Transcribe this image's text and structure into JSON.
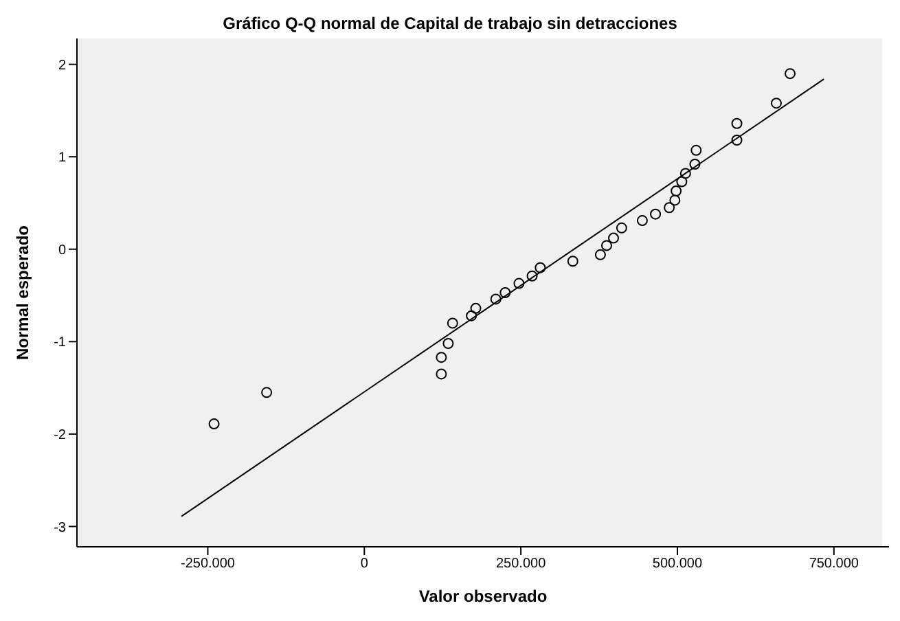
{
  "chart_data": {
    "type": "scatter",
    "title": "Gráfico Q-Q normal de Capital de trabajo sin detracciones",
    "xlabel": "Valor observado",
    "ylabel": "Normal esperado",
    "grid": false,
    "xlim": [
      -459000,
      838000
    ],
    "ylim": [
      -3.22,
      2.28
    ],
    "xticks": [
      {
        "value": -250000,
        "label": "-250.000"
      },
      {
        "value": 0,
        "label": "0"
      },
      {
        "value": 250000,
        "label": "250.000"
      },
      {
        "value": 500000,
        "label": "500.000"
      },
      {
        "value": 750000,
        "label": "750.000"
      }
    ],
    "yticks": [
      -3,
      -2,
      -1,
      0,
      1,
      2
    ],
    "series": [
      {
        "marker": "circle",
        "color": "#000000",
        "x": [
          -240000,
          -156000,
          123000,
          123000,
          134000,
          141000,
          171000,
          178000,
          210000,
          225000,
          247000,
          268000,
          281000,
          333000,
          377000,
          387000,
          398000,
          411000,
          444000,
          465000,
          487000,
          496000,
          498000,
          507000,
          513000,
          528000,
          530000,
          595000,
          595000,
          658000,
          680000
        ],
        "values": [
          -1.89,
          -1.55,
          -1.35,
          -1.17,
          -1.02,
          -0.8,
          -0.72,
          -0.64,
          -0.54,
          -0.47,
          -0.37,
          -0.29,
          -0.2,
          -0.13,
          -0.06,
          0.04,
          0.12,
          0.23,
          0.31,
          0.38,
          0.45,
          0.53,
          0.63,
          0.73,
          0.82,
          0.92,
          1.07,
          1.18,
          1.36,
          1.58,
          1.9
        ]
      },
      {
        "type": "line",
        "color": "#000000",
        "x": [
          -292000,
          734000
        ],
        "values": [
          -2.89,
          1.84
        ]
      }
    ]
  }
}
